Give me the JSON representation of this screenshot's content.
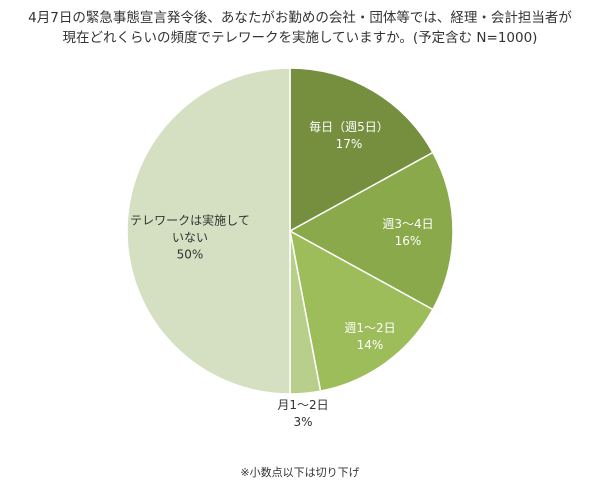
{
  "chart_data": {
    "type": "pie",
    "title_lines": [
      "4月7日の緊急事態宣言発令後、あなたがお勤めの会社・団体等では、経理・会計担当者が",
      "現在どれくらいの頻度でテレワークを実施していますか。(予定含む N=1000)"
    ],
    "slices": [
      {
        "label_lines": [
          "毎日（週5日）"
        ],
        "value": 17,
        "value_label": "17%",
        "color": "#758f3f",
        "text_color": "#ffffff"
      },
      {
        "label_lines": [
          "週3～4日"
        ],
        "value": 16,
        "value_label": "16%",
        "color": "#89a94a",
        "text_color": "#ffffff"
      },
      {
        "label_lines": [
          "週1～2日"
        ],
        "value": 14,
        "value_label": "14%",
        "color": "#9dbd5a",
        "text_color": "#ffffff"
      },
      {
        "label_lines": [
          "月1～2日"
        ],
        "value": 3,
        "value_label": "3%",
        "color": "#b8cf8b",
        "text_color": "#333333"
      },
      {
        "label_lines": [
          "テレワークは実施して",
          "いない"
        ],
        "value": 50,
        "value_label": "50%",
        "color": "#d5e0c3",
        "text_color": "#333333"
      }
    ],
    "footnote": "※小数点以下は切り下げ"
  }
}
